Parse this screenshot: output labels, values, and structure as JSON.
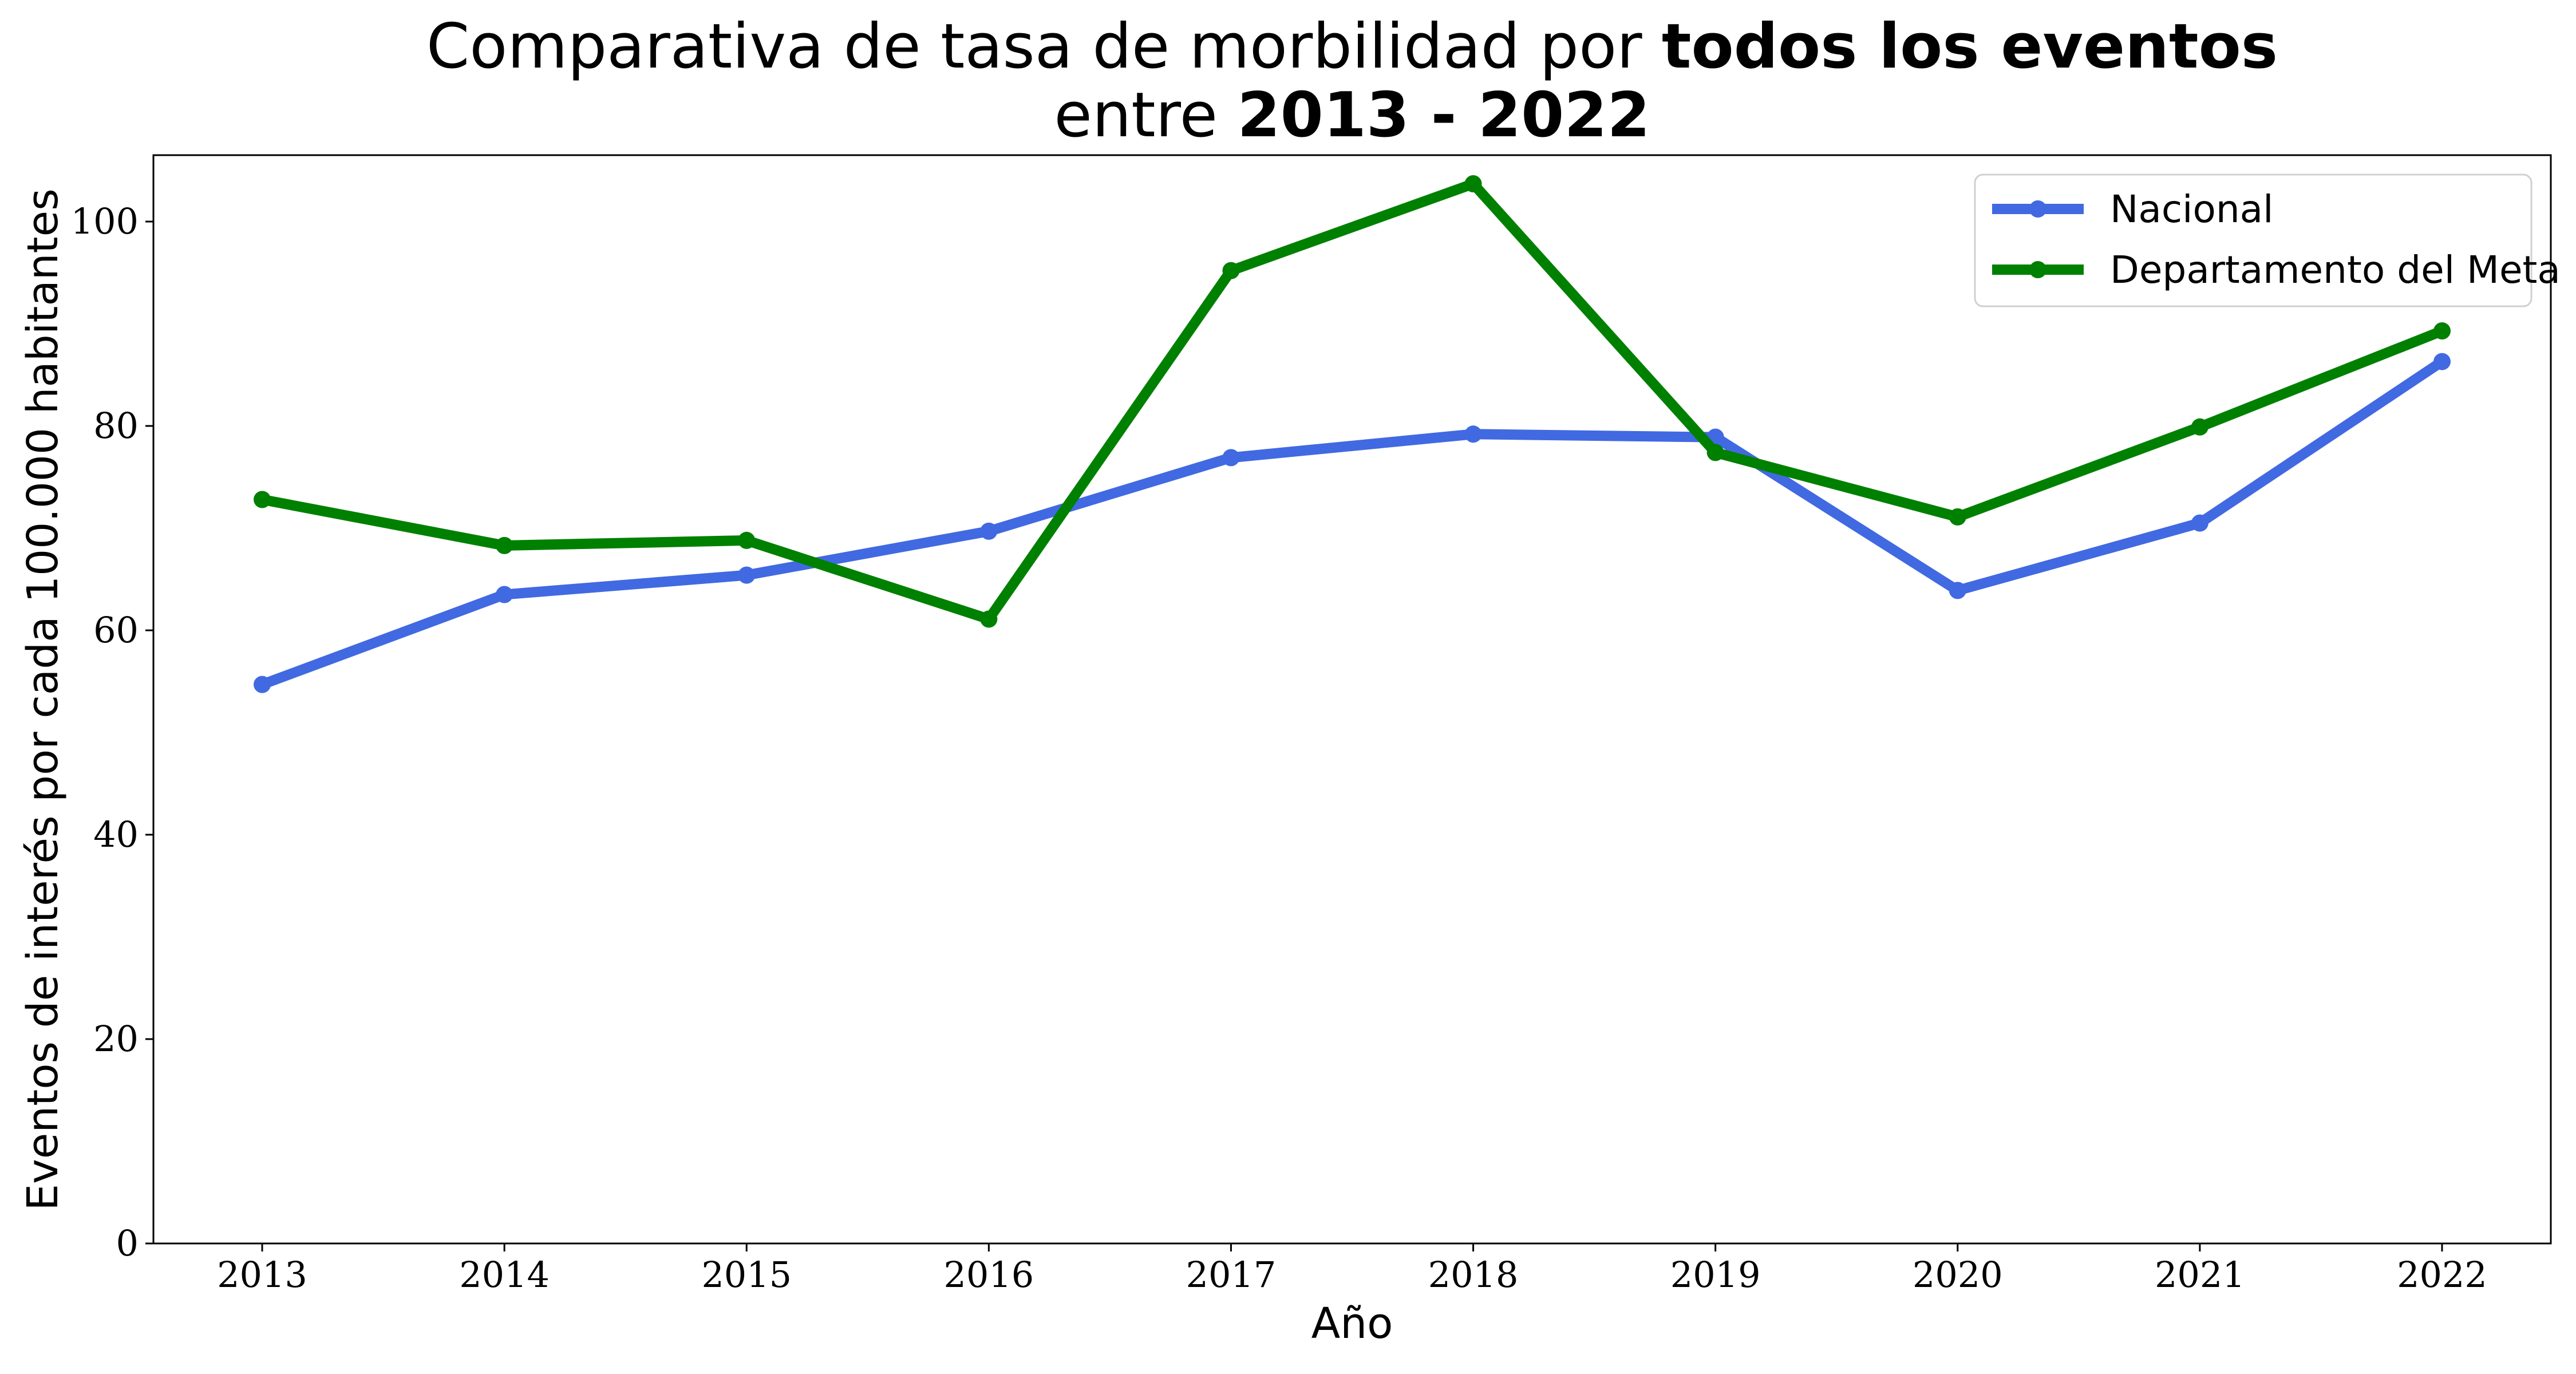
{
  "chart_data": {
    "type": "line",
    "title_line1_prefix": "Comparativa de tasa de morbilidad por ",
    "title_line1_bold": "todos los eventos",
    "title_line2_prefix": "entre ",
    "title_line2_bold": "2013 - 2022",
    "xlabel": "Año",
    "ylabel": "Eventos de interés por cada 100.000 habitantes",
    "categories": [
      "2013",
      "2014",
      "2015",
      "2016",
      "2017",
      "2018",
      "2019",
      "2020",
      "2021",
      "2022"
    ],
    "ylim": [
      0,
      106.5
    ],
    "yticks": [
      "0",
      "20",
      "40",
      "60",
      "80",
      "100"
    ],
    "grid": false,
    "legend_position": "top-right",
    "series": [
      {
        "name": "Nacional",
        "color": "#4169e1",
        "values": [
          54.7,
          63.5,
          65.4,
          69.7,
          76.9,
          79.2,
          78.9,
          63.9,
          70.5,
          86.3
        ]
      },
      {
        "name": "Departamento del Meta",
        "color": "#008000",
        "values": [
          72.8,
          68.3,
          68.8,
          61.1,
          95.2,
          103.7,
          77.4,
          71.1,
          79.9,
          89.3
        ]
      }
    ]
  }
}
